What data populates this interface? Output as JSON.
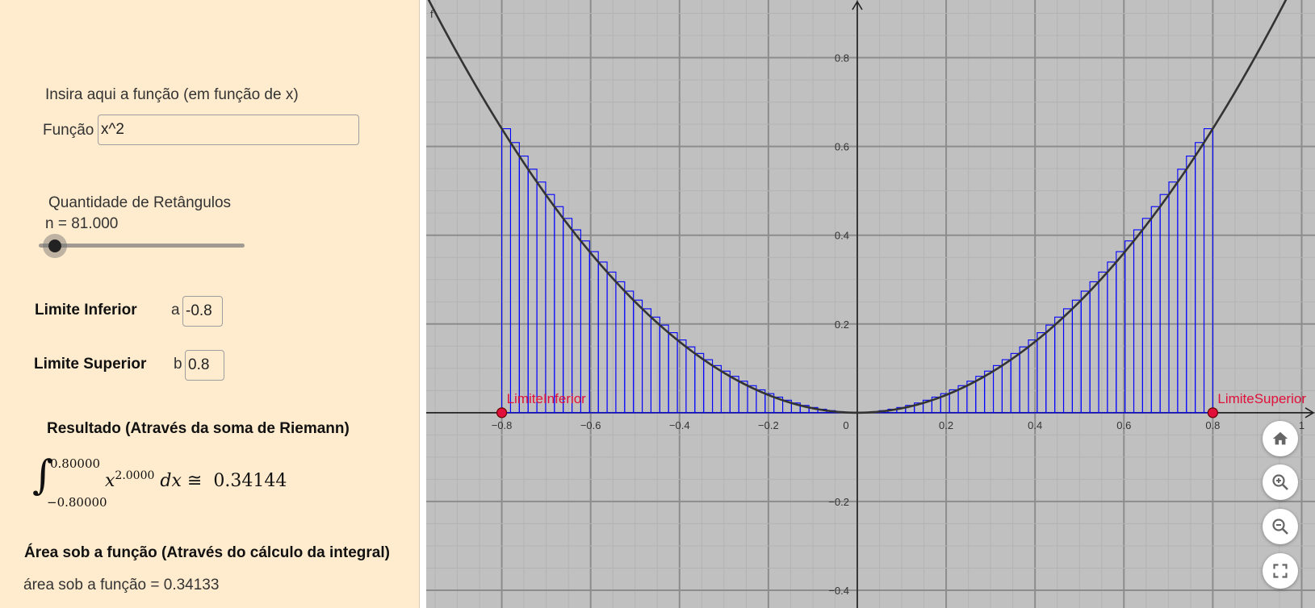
{
  "panel": {
    "function_prompt": "Insira aqui a função (em função de x)",
    "function_label": "Função",
    "function_value": "x^2",
    "rect_title": "Quantidade de Retângulos",
    "n_label": "n = 81.000",
    "n_value": 81,
    "lower_title": "Limite Inferior",
    "lower_var": "a",
    "lower_value": "-0.8",
    "upper_title": "Limite Superior",
    "upper_var": "b",
    "upper_value": "0.8",
    "riemann_title": "Resultado (Através da soma de Riemann)",
    "integral_upper": "0.80000",
    "integral_lower": "−0.80000",
    "integral_base": "x",
    "integral_exponent": "2.0000",
    "integral_dx": "dx",
    "integral_approx": "≅",
    "integral_result": "0.34144",
    "area_title": "Área sob a função (Através do cálculo da integral)",
    "area_text": "área sob a função = 0.34133"
  },
  "graph": {
    "function_name": "f",
    "lower_point_label": "LimiteInferior",
    "upper_point_label": "LimiteSuperior",
    "x_ticks": [
      "−0.8",
      "−0.6",
      "−0.4",
      "−0.2",
      "0",
      "0.2",
      "0.4",
      "0.6",
      "0.8",
      "1"
    ],
    "y_ticks": [
      "0.8",
      "0.6",
      "0.4",
      "0.2",
      "−0.2",
      "−0.4"
    ],
    "x_range": [
      -0.97,
      1.03
    ],
    "y_range": [
      -0.44,
      0.93
    ],
    "n_rectangles": 81,
    "a": -0.8,
    "b": 0.8,
    "colors": {
      "background": "#c0c0c0",
      "grid_major": "#8c8c8c",
      "grid_minor": "#b3b3b3",
      "rect": "#0000ff",
      "curve": "#333333",
      "point": "#e0103a"
    }
  },
  "controls": {
    "home": "home-icon",
    "zoom_in": "zoom-in-icon",
    "zoom_out": "zoom-out-icon",
    "fullscreen": "fullscreen-icon"
  }
}
